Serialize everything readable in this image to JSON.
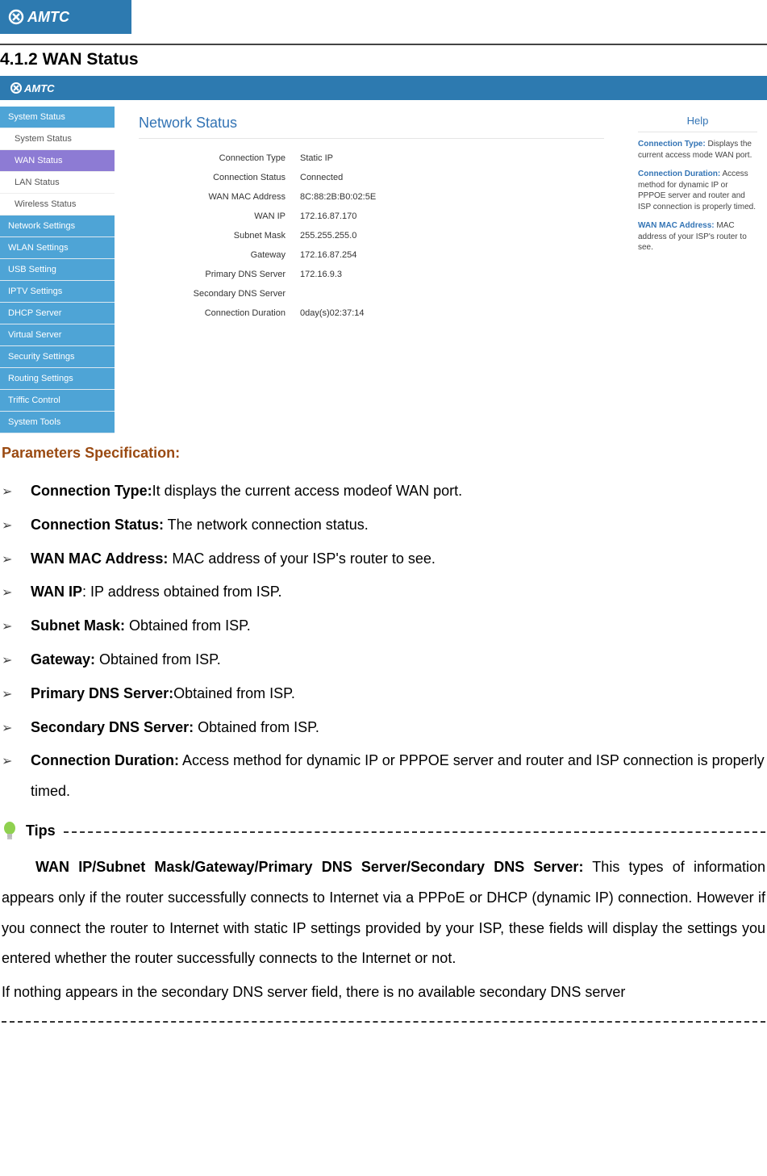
{
  "brand": {
    "name": "AMTC",
    "logo_bg": "#2d7ab0",
    "logo_text_color": "#ffffff"
  },
  "doc": {
    "section_number": "4.1.2",
    "section_title": "WAN Status",
    "params_heading": "Parameters Specification:",
    "tips_label": "Tips"
  },
  "router": {
    "panel_title": "Network Status",
    "help_title": "Help",
    "sidebar": {
      "groups": [
        {
          "label": "System Status",
          "expanded": true,
          "items": [
            {
              "label": "System Status",
              "active": false
            },
            {
              "label": "WAN Status",
              "active": true
            },
            {
              "label": "LAN Status",
              "active": false
            },
            {
              "label": "Wireless Status",
              "active": false
            }
          ]
        },
        {
          "label": "Network Settings",
          "expanded": false,
          "items": []
        },
        {
          "label": "WLAN Settings",
          "expanded": false,
          "items": []
        },
        {
          "label": "USB Setting",
          "expanded": false,
          "items": []
        },
        {
          "label": "IPTV Settings",
          "expanded": false,
          "items": []
        },
        {
          "label": "DHCP Server",
          "expanded": false,
          "items": []
        },
        {
          "label": "Virtual Server",
          "expanded": false,
          "items": []
        },
        {
          "label": "Security Settings",
          "expanded": false,
          "items": []
        },
        {
          "label": "Routing Settings",
          "expanded": false,
          "items": []
        },
        {
          "label": "Triffic Control",
          "expanded": false,
          "items": []
        },
        {
          "label": "System Tools",
          "expanded": false,
          "items": []
        }
      ]
    },
    "status": [
      {
        "k": "Connection Type",
        "v": "Static IP"
      },
      {
        "k": "Connection Status",
        "v": "Connected"
      },
      {
        "k": "WAN MAC Address",
        "v": "8C:88:2B:B0:02:5E"
      },
      {
        "k": "WAN IP",
        "v": "172.16.87.170"
      },
      {
        "k": "Subnet Mask",
        "v": "255.255.255.0"
      },
      {
        "k": "Gateway",
        "v": "172.16.87.254"
      },
      {
        "k": "Primary DNS Server",
        "v": "172.16.9.3"
      },
      {
        "k": "Secondary DNS Server",
        "v": ""
      },
      {
        "k": "Connection Duration",
        "v": "0day(s)02:37:14"
      }
    ],
    "help": [
      {
        "title": "Connection Type:",
        "text": " Displays the current access mode WAN port."
      },
      {
        "title": "Connection Duration:",
        "text": " Access method for dynamic IP or PPPOE server and router and ISP connection is properly timed."
      },
      {
        "title": "WAN MAC Address:",
        "text": " MAC address of your ISP's router to see."
      }
    ]
  },
  "params": [
    {
      "term": "Connection Type:",
      "desc": "It displays the current access modeof WAN port."
    },
    {
      "term": "Connection Status:",
      "desc": " The network connection status."
    },
    {
      "term": "WAN MAC Address:",
      "desc": " MAC address of your ISP's router to see."
    },
    {
      "term": "WAN IP",
      "desc": ": IP address obtained from ISP."
    },
    {
      "term": "Subnet Mask:",
      "desc": " Obtained from ISP."
    },
    {
      "term": "Gateway:",
      "desc": " Obtained from ISP."
    },
    {
      "term": "Primary DNS Server:",
      "desc": "Obtained from ISP."
    },
    {
      "term": "Secondary DNS Server:",
      "desc": " Obtained from ISP."
    },
    {
      "term": "Connection Duration:",
      "desc": " Access method for dynamic IP or PPPOE server and router and ISP connection is properly timed."
    }
  ],
  "tips": {
    "p1_bold": "WAN IP/Subnet Mask/Gateway/Primary DNS Server/Secondary DNS Server:",
    "p1_rest": " This types of information appears only if the router successfully connects to Internet via a PPPoE or DHCP (dynamic IP) connection. However if you connect the router to Internet with static IP settings provided by your ISP, these fields will display the settings you entered whether the router successfully connects to the Internet or not.",
    "p2": "If nothing appears in the secondary DNS server field, there is no available secondary DNS server"
  },
  "colors": {
    "topbar": "#2d7ab0",
    "sidebar_group": "#4ea4d6",
    "sidebar_active": "#8d7bd4",
    "panel_title": "#3374b5",
    "params_head": "#9a4a12",
    "help_title": "#3374b5"
  }
}
